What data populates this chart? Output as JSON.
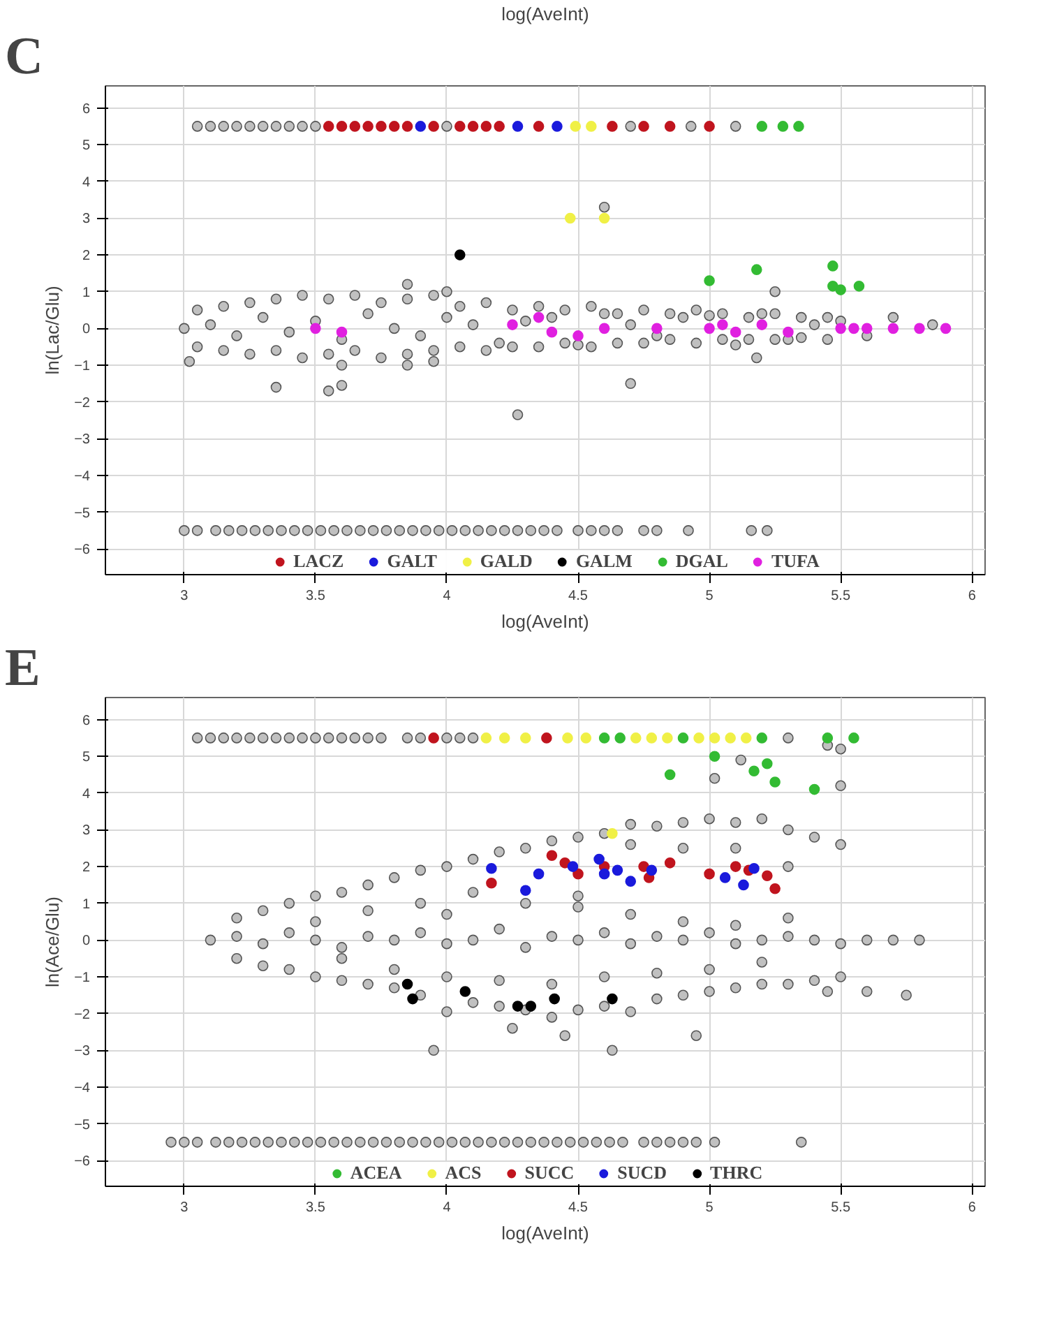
{
  "chart_data": [
    {
      "type": "scatter",
      "annotations": [
        "C",
        "log(AveInt)"
      ],
      "xlabel": "log(AveInt)",
      "ylabel": "ln(Lac/Glu)",
      "xlim": [
        2.7,
        6.05
      ],
      "ylim": [
        -6.7,
        6.6
      ],
      "xticks": [
        3,
        3.5,
        4,
        4.5,
        5,
        5.5,
        6
      ],
      "yticks": [
        -6,
        -5,
        -4,
        -3,
        -2,
        -1,
        0,
        1,
        2,
        3,
        4,
        5,
        6
      ],
      "grid": true,
      "legend": "bottom",
      "marker": "circle",
      "series": [
        {
          "color": "#c0c0c0",
          "x": [
            3.05,
            3.1,
            3.15,
            3.2,
            3.25,
            3.3,
            3.35,
            3.4,
            3.45,
            3.5,
            4.0,
            4.7,
            4.93,
            5.1
          ],
          "values": [
            5.5,
            5.5,
            5.5,
            5.5,
            5.5,
            5.5,
            5.5,
            5.5,
            5.5,
            5.5,
            5.5,
            5.5,
            5.5,
            5.5
          ]
        },
        {
          "color": "#c0c0c0",
          "x": [
            3.0,
            3.05,
            3.12,
            3.17,
            3.22,
            3.27,
            3.32,
            3.37,
            3.42,
            3.47,
            3.52,
            3.57,
            3.62,
            3.67,
            3.72,
            3.77,
            3.82,
            3.87,
            3.92,
            3.97,
            4.02,
            4.07,
            4.12,
            4.17,
            4.22,
            4.27,
            4.32,
            4.37,
            4.42,
            4.5,
            4.55,
            4.6,
            4.65,
            4.75,
            4.8,
            4.92,
            5.16,
            5.22
          ],
          "values": [
            -5.5,
            -5.5,
            -5.5,
            -5.5,
            -5.5,
            -5.5,
            -5.5,
            -5.5,
            -5.5,
            -5.5,
            -5.5,
            -5.5,
            -5.5,
            -5.5,
            -5.5,
            -5.5,
            -5.5,
            -5.5,
            -5.5,
            -5.5,
            -5.5,
            -5.5,
            -5.5,
            -5.5,
            -5.5,
            -5.5,
            -5.5,
            -5.5,
            -5.5,
            -5.5,
            -5.5,
            -5.5,
            -5.5,
            -5.5,
            -5.5,
            -5.5,
            -5.5,
            -5.5
          ]
        },
        {
          "color": "#c0c0c0",
          "x": [
            3.0,
            3.1,
            3.2,
            3.3,
            3.4,
            3.5,
            3.6,
            3.7,
            3.8,
            3.9,
            4.0,
            4.1,
            4.2,
            4.3,
            4.4,
            4.5,
            4.6,
            4.7,
            4.8,
            4.9,
            5.0,
            5.1,
            5.2,
            5.3,
            5.4,
            5.5,
            5.6,
            5.7,
            5.85
          ],
          "values": [
            0,
            0.1,
            -0.2,
            0.3,
            -0.1,
            0.2,
            -0.3,
            0.4,
            0,
            -0.2,
            0.3,
            0.1,
            -0.4,
            0.2,
            0.3,
            -0.45,
            0.4,
            0.1,
            -0.2,
            0.3,
            0.35,
            -0.45,
            0.4,
            -0.3,
            0.1,
            0.2,
            -0.2,
            0.3,
            0.1
          ]
        },
        {
          "color": "#c0c0c0",
          "x": [
            3.05,
            3.15,
            3.25,
            3.35,
            3.45,
            3.55,
            3.65,
            3.75,
            3.85,
            3.95,
            4.05,
            4.15,
            4.25,
            4.35,
            4.45,
            4.55,
            4.65,
            4.75,
            4.85,
            4.95,
            5.05,
            5.15,
            5.25,
            5.35,
            5.45
          ],
          "values": [
            0.5,
            0.6,
            0.7,
            0.8,
            0.9,
            0.8,
            0.9,
            0.7,
            0.8,
            0.9,
            0.6,
            0.7,
            0.5,
            0.6,
            0.5,
            0.6,
            0.4,
            0.5,
            0.4,
            0.5,
            0.4,
            0.3,
            0.4,
            0.3,
            0.3
          ]
        },
        {
          "color": "#c0c0c0",
          "x": [
            3.05,
            3.15,
            3.25,
            3.35,
            3.45,
            3.55,
            3.65,
            3.75,
            3.85,
            3.95,
            4.05,
            4.15,
            4.25,
            4.35,
            4.45,
            4.55,
            4.65,
            4.75,
            4.85,
            4.95,
            5.05,
            5.15,
            5.25,
            5.35,
            5.45
          ],
          "values": [
            -0.5,
            -0.6,
            -0.7,
            -0.6,
            -0.8,
            -0.7,
            -0.6,
            -0.8,
            -0.7,
            -0.6,
            -0.5,
            -0.6,
            -0.5,
            -0.5,
            -0.4,
            -0.5,
            -0.4,
            -0.4,
            -0.3,
            -0.4,
            -0.3,
            -0.3,
            -0.3,
            -0.25,
            -0.3
          ]
        },
        {
          "color": "#c0c0c0",
          "x": [
            3.6,
            3.85,
            3.95,
            3.35,
            3.55,
            3.6,
            4.27,
            4.7,
            4.6,
            3.02,
            3.85,
            4.0,
            5.25,
            5.18
          ],
          "values": [
            -1.0,
            -1.0,
            -0.9,
            -1.6,
            -1.7,
            -1.55,
            -2.35,
            -1.5,
            3.3,
            -0.9,
            1.2,
            1.0,
            1.0,
            -0.8
          ]
        },
        {
          "name": "LACZ",
          "color": "#c0141e",
          "x": [
            3.55,
            3.6,
            3.65,
            3.7,
            3.75,
            3.8,
            3.85,
            3.95,
            4.05,
            4.1,
            4.15,
            4.2,
            4.35,
            4.63,
            4.75,
            4.85,
            5.0
          ],
          "values": [
            5.5,
            5.5,
            5.5,
            5.5,
            5.5,
            5.5,
            5.5,
            5.5,
            5.5,
            5.5,
            5.5,
            5.5,
            5.5,
            5.5,
            5.5,
            5.5,
            5.5
          ]
        },
        {
          "name": "GALT",
          "color": "#1a1adc",
          "x": [
            3.9,
            4.27,
            4.42
          ],
          "values": [
            5.5,
            5.5,
            5.5
          ]
        },
        {
          "name": "GALD",
          "color": "#f0f046",
          "x": [
            4.49,
            4.55,
            4.47,
            4.6
          ],
          "values": [
            5.5,
            5.5,
            3.0,
            3.0
          ]
        },
        {
          "name": "GALM",
          "color": "#000000",
          "x": [
            4.05
          ],
          "values": [
            2.0
          ]
        },
        {
          "name": "DGAL",
          "color": "#33bb33",
          "x": [
            5.2,
            5.28,
            5.34,
            5.0,
            5.18,
            5.47,
            5.47,
            5.5,
            5.57
          ],
          "values": [
            5.5,
            5.5,
            5.5,
            1.3,
            1.6,
            1.7,
            1.15,
            1.05,
            1.15
          ]
        },
        {
          "name": "TUFA",
          "color": "#e020e0",
          "x": [
            3.5,
            3.6,
            4.25,
            4.35,
            4.4,
            4.5,
            4.6,
            4.8,
            5.0,
            5.05,
            5.1,
            5.2,
            5.3,
            5.5,
            5.55,
            5.6,
            5.7,
            5.8,
            5.9
          ],
          "values": [
            0,
            -0.1,
            0.1,
            0.3,
            -0.1,
            -0.2,
            0,
            0,
            0,
            0.1,
            -0.1,
            0.1,
            -0.1,
            0,
            0,
            0,
            0,
            0,
            0
          ]
        }
      ]
    },
    {
      "type": "scatter",
      "annotations": [
        "E"
      ],
      "xlabel": "log(AveInt)",
      "ylabel": "ln(Ace/Glu)",
      "xlim": [
        2.7,
        6.05
      ],
      "ylim": [
        -6.7,
        6.6
      ],
      "xticks": [
        3,
        3.5,
        4,
        4.5,
        5,
        5.5,
        6
      ],
      "yticks": [
        -6,
        -5,
        -4,
        -3,
        -2,
        -1,
        0,
        1,
        2,
        3,
        4,
        5,
        6
      ],
      "grid": true,
      "legend": "bottom",
      "marker": "circle",
      "series": [
        {
          "color": "#c0c0c0",
          "x": [
            3.05,
            3.1,
            3.15,
            3.2,
            3.25,
            3.3,
            3.35,
            3.4,
            3.45,
            3.5,
            3.55,
            3.6,
            3.65,
            3.7,
            3.75,
            3.85,
            3.9,
            4.0,
            4.05,
            4.1,
            5.3,
            5.45,
            5.5
          ],
          "values": [
            5.5,
            5.5,
            5.5,
            5.5,
            5.5,
            5.5,
            5.5,
            5.5,
            5.5,
            5.5,
            5.5,
            5.5,
            5.5,
            5.5,
            5.5,
            5.5,
            5.5,
            5.5,
            5.5,
            5.5,
            5.5,
            5.3,
            5.2
          ]
        },
        {
          "color": "#c0c0c0",
          "x": [
            2.95,
            3.0,
            3.05,
            3.12,
            3.17,
            3.22,
            3.27,
            3.32,
            3.37,
            3.42,
            3.47,
            3.52,
            3.57,
            3.62,
            3.67,
            3.72,
            3.77,
            3.82,
            3.87,
            3.92,
            3.97,
            4.02,
            4.07,
            4.12,
            4.17,
            4.22,
            4.27,
            4.32,
            4.37,
            4.42,
            4.47,
            4.52,
            4.57,
            4.62,
            4.67,
            4.75,
            4.8,
            4.85,
            4.9,
            4.95,
            5.02,
            5.35
          ],
          "values": [
            -5.5,
            -5.5,
            -5.5,
            -5.5,
            -5.5,
            -5.5,
            -5.5,
            -5.5,
            -5.5,
            -5.5,
            -5.5,
            -5.5,
            -5.5,
            -5.5,
            -5.5,
            -5.5,
            -5.5,
            -5.5,
            -5.5,
            -5.5,
            -5.5,
            -5.5,
            -5.5,
            -5.5,
            -5.5,
            -5.5,
            -5.5,
            -5.5,
            -5.5,
            -5.5,
            -5.5,
            -5.5,
            -5.5,
            -5.5,
            -5.5,
            -5.5,
            -5.5,
            -5.5,
            -5.5,
            -5.5,
            -5.5,
            -5.5
          ]
        },
        {
          "color": "#c0c0c0",
          "x": [
            3.1,
            3.2,
            3.3,
            3.4,
            3.5,
            3.6,
            3.7,
            3.8,
            3.9,
            4.0,
            4.1,
            4.2,
            4.3,
            4.4,
            4.5,
            4.6,
            4.7,
            4.8,
            4.9,
            5.0,
            5.1,
            5.2,
            5.3,
            5.4,
            5.5,
            5.6,
            5.7,
            5.8
          ],
          "values": [
            0,
            0.1,
            -0.1,
            0.2,
            0,
            -0.2,
            0.1,
            0,
            0.2,
            -0.1,
            0,
            0.3,
            -0.2,
            0.1,
            0,
            0.2,
            -0.1,
            0.1,
            0,
            0.2,
            -0.1,
            0,
            0.1,
            0,
            -0.1,
            0,
            0,
            0
          ]
        },
        {
          "color": "#c0c0c0",
          "x": [
            3.2,
            3.3,
            3.4,
            3.5,
            3.6,
            3.7,
            3.8,
            3.9,
            4.0,
            4.1,
            4.2,
            4.3,
            4.4,
            4.5,
            4.6,
            4.7,
            4.8,
            4.9,
            5.0,
            5.1,
            5.2,
            5.3,
            5.4,
            5.5
          ],
          "values": [
            0.6,
            0.8,
            1.0,
            1.2,
            1.3,
            1.5,
            1.7,
            1.9,
            2.0,
            2.2,
            2.4,
            2.5,
            2.7,
            2.8,
            2.9,
            3.15,
            3.1,
            3.2,
            3.3,
            3.2,
            3.3,
            3.0,
            2.8,
            2.6
          ]
        },
        {
          "color": "#c0c0c0",
          "x": [
            3.2,
            3.3,
            3.4,
            3.5,
            3.6,
            3.7,
            3.8,
            3.9,
            4.0,
            4.1,
            4.2,
            4.3,
            4.4,
            4.5,
            4.6,
            4.7,
            4.8,
            4.9,
            5.0,
            5.1,
            5.2,
            5.3,
            5.4,
            5.5
          ],
          "values": [
            -0.5,
            -0.7,
            -0.8,
            -1.0,
            -1.1,
            -1.2,
            -1.3,
            -1.5,
            -1.95,
            -1.7,
            -1.8,
            -1.9,
            -2.1,
            -1.9,
            -1.8,
            -1.95,
            -1.6,
            -1.5,
            -1.4,
            -1.3,
            -1.2,
            -1.2,
            -1.1,
            -1.0
          ]
        },
        {
          "color": "#c0c0c0",
          "x": [
            3.5,
            3.7,
            3.9,
            4.1,
            4.5,
            4.7,
            4.9,
            5.1,
            5.3
          ],
          "values": [
            0.5,
            0.8,
            1.0,
            1.3,
            1.2,
            2.6,
            2.5,
            2.5,
            2.0
          ]
        },
        {
          "color": "#c0c0c0",
          "x": [
            3.6,
            3.8,
            4.0,
            4.2,
            4.4,
            4.6,
            4.8,
            5.0,
            5.2
          ],
          "values": [
            -0.5,
            -0.8,
            -1.0,
            -1.1,
            -1.2,
            -1.0,
            -0.9,
            -0.8,
            -0.6
          ]
        },
        {
          "color": "#c0c0c0",
          "x": [
            4.0,
            4.3,
            4.5,
            4.7,
            4.9,
            5.1,
            5.3
          ],
          "values": [
            0.7,
            1.0,
            0.9,
            0.7,
            0.5,
            0.4,
            0.6
          ]
        },
        {
          "color": "#c0c0c0",
          "x": [
            3.95,
            4.25,
            4.45,
            4.63,
            4.95,
            5.45,
            5.6,
            5.75,
            5.02,
            5.12,
            5.5
          ],
          "values": [
            -3.0,
            -2.4,
            -2.6,
            -3.0,
            -2.6,
            -1.4,
            -1.4,
            -1.5,
            4.4,
            4.9,
            4.2
          ]
        },
        {
          "name": "ACEA",
          "color": "#33bb33",
          "x": [
            4.6,
            4.66,
            4.9,
            5.2,
            5.45,
            5.55,
            5.02,
            4.85,
            5.17,
            5.22,
            5.25,
            5.4
          ],
          "values": [
            5.5,
            5.5,
            5.5,
            5.5,
            5.5,
            5.5,
            5.0,
            4.5,
            4.6,
            4.8,
            4.3,
            4.1
          ]
        },
        {
          "name": "ACS",
          "color": "#f0f046",
          "x": [
            4.15,
            4.22,
            4.3,
            4.46,
            4.53,
            4.72,
            4.78,
            4.84,
            4.96,
            5.02,
            5.08,
            5.14,
            4.63
          ],
          "values": [
            5.5,
            5.5,
            5.5,
            5.5,
            5.5,
            5.5,
            5.5,
            5.5,
            5.5,
            5.5,
            5.5,
            5.5,
            2.9
          ]
        },
        {
          "name": "SUCC",
          "color": "#c0141e",
          "x": [
            3.95,
            4.38,
            4.4,
            4.45,
            4.5,
            4.6,
            4.75,
            4.77,
            4.85,
            5.0,
            5.1,
            5.15,
            5.22,
            5.25,
            4.17
          ],
          "values": [
            5.5,
            5.5,
            2.3,
            2.1,
            1.8,
            2.0,
            2.0,
            1.7,
            2.1,
            1.8,
            2.0,
            1.9,
            1.75,
            1.4,
            1.55
          ]
        },
        {
          "name": "SUCD",
          "color": "#1a1adc",
          "x": [
            4.17,
            4.3,
            4.35,
            4.48,
            4.58,
            4.6,
            4.65,
            4.7,
            4.78,
            5.06,
            5.13,
            5.17
          ],
          "values": [
            1.95,
            1.35,
            1.8,
            2.0,
            2.2,
            1.8,
            1.9,
            1.6,
            1.9,
            1.7,
            1.5,
            1.95
          ]
        },
        {
          "name": "THRC",
          "color": "#000000",
          "x": [
            3.85,
            3.87,
            4.07,
            4.27,
            4.32,
            4.41,
            4.63
          ],
          "values": [
            -1.2,
            -1.6,
            -1.4,
            -1.8,
            -1.8,
            -1.6,
            -1.6
          ]
        }
      ]
    }
  ]
}
